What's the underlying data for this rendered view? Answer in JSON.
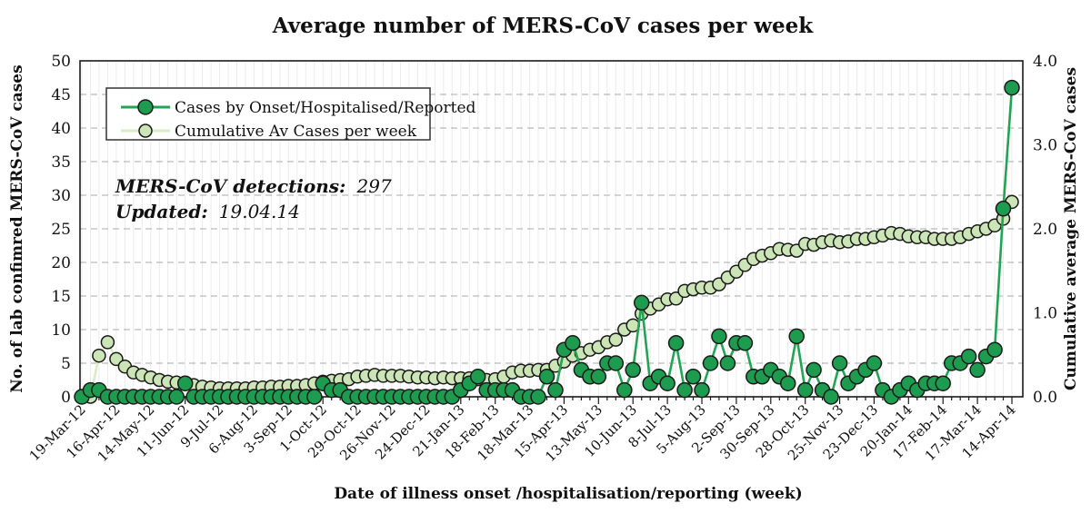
{
  "annotation": {
    "detections_label": "MERS-CoV detections:",
    "detections_value": "297",
    "updated_label": "Updated:",
    "updated_value": "19.04.14"
  },
  "colors": {
    "cases_line": "#23a455",
    "cases_marker": "#1d9b4e",
    "cumulative_line": "#d9ebc8",
    "cumulative_marker": "#cbe5b6",
    "marker_outline": "#1a1a1a",
    "grid_dashed": "#a9a9a9",
    "grid_vertical": "#ebebeb"
  },
  "chart_data": {
    "type": "line",
    "title": "Average number of MERS-CoV cases per week",
    "xlabel": "Date of illness onset /hospitalisation/reporting (week)",
    "ylabel_left": "No. of lab confimred MERS-CoV cases",
    "ylabel_right": "Cumulative average MERS-CoV cases",
    "ylim_left": [
      0,
      50
    ],
    "yticks_left": [
      0,
      5,
      10,
      15,
      20,
      25,
      30,
      35,
      40,
      45,
      50
    ],
    "ylim_right": [
      0.0,
      4.0
    ],
    "yticks_right": [
      "0.0",
      "1.0",
      "2.0",
      "3.0",
      "4.0"
    ],
    "weeks_total": 109,
    "x_tick_interval_weeks": 4,
    "grid": {
      "vertical_weekly": true,
      "horizontal_step_left_axis": 5
    },
    "legend_position": "top-left",
    "x_tick_labels": [
      "19-Mar-12",
      "16-Apr-12",
      "14-May-12",
      "11-Jun-12",
      "9-Jul-12",
      "6-Aug-12",
      "3-Sep-12",
      "1-Oct-12",
      "29-Oct-12",
      "26-Nov-12",
      "24-Dec-12",
      "21-Jan-13",
      "18-Feb-13",
      "18-Mar-13",
      "15-Apr-13",
      "13-May-13",
      "10-Jun-13",
      "8-Jul-13",
      "5-Aug-13",
      "2-Sep-13",
      "30-Sep-13",
      "28-Oct-13",
      "25-Nov-13",
      "23-Dec-13",
      "20-Jan-14",
      "17-Feb-14",
      "17-Mar-14",
      "14-Apr-14"
    ],
    "series": [
      {
        "name": "Cumulative Av Cases per week",
        "axis": "right",
        "line_color": "#d9ebc8",
        "marker_fill": "#cbe5b6",
        "marker_radius": 7,
        "values": [
          0,
          0,
          0.49,
          0.65,
          0.45,
          0.36,
          0.29,
          0.26,
          0.23,
          0.2,
          0.18,
          0.17,
          0.15,
          0.14,
          0.12,
          0.11,
          0.1,
          0.1,
          0.1,
          0.1,
          0.11,
          0.11,
          0.12,
          0.12,
          0.13,
          0.13,
          0.14,
          0.16,
          0.18,
          0.19,
          0.2,
          0.21,
          0.24,
          0.25,
          0.26,
          0.25,
          0.25,
          0.25,
          0.24,
          0.23,
          0.23,
          0.22,
          0.23,
          0.22,
          0.22,
          0.22,
          0.21,
          0.2,
          0.21,
          0.24,
          0.29,
          0.31,
          0.31,
          0.32,
          0.32,
          0.37,
          0.42,
          0.49,
          0.52,
          0.56,
          0.59,
          0.65,
          0.68,
          0.8,
          0.85,
          0.99,
          1.05,
          1.1,
          1.16,
          1.17,
          1.26,
          1.28,
          1.3,
          1.3,
          1.34,
          1.42,
          1.49,
          1.57,
          1.64,
          1.68,
          1.71,
          1.76,
          1.75,
          1.74,
          1.82,
          1.81,
          1.84,
          1.86,
          1.84,
          1.85,
          1.88,
          1.88,
          1.9,
          1.92,
          1.95,
          1.94,
          1.91,
          1.9,
          1.9,
          1.88,
          1.88,
          1.88,
          1.9,
          1.94,
          1.97,
          2.0,
          2.04,
          2.12,
          2.32
        ]
      },
      {
        "name": "Cases by Onset/Hospitalised/Reported",
        "axis": "left",
        "line_color": "#23a455",
        "marker_fill": "#1d9b4e",
        "marker_radius": 8,
        "values": [
          0,
          1,
          1,
          0,
          0,
          0,
          0,
          0,
          0,
          0,
          0,
          0,
          2,
          0,
          0,
          0,
          0,
          0,
          0,
          0,
          0,
          0,
          0,
          0,
          0,
          0,
          0,
          0,
          2,
          1,
          1,
          0,
          0,
          0,
          0,
          0,
          0,
          0,
          0,
          0,
          0,
          0,
          0,
          0,
          1,
          2,
          3,
          1,
          1,
          1,
          1,
          0,
          0,
          0,
          3,
          1,
          7,
          8,
          4,
          3,
          3,
          5,
          5,
          1,
          4,
          14,
          2,
          3,
          2,
          8,
          1,
          3,
          1,
          5,
          9,
          5,
          8,
          8,
          3,
          3,
          4,
          3,
          2,
          9,
          1,
          4,
          1,
          0,
          5,
          2,
          3,
          4,
          5,
          1,
          0,
          1,
          2,
          1,
          2,
          2,
          2,
          5,
          5,
          6,
          4,
          6,
          7,
          28,
          46
        ]
      }
    ],
    "legend_order": [
      "Cases by Onset/Hospitalised/Reported",
      "Cumulative Av Cases per week"
    ]
  }
}
